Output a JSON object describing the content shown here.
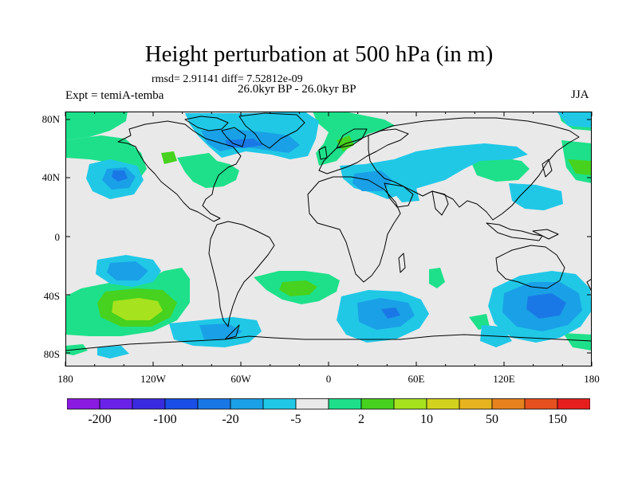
{
  "title": "Height perturbation at 500 hPa (in m)",
  "stats": "rmsd= 2.91141 diff= 7.52812e-09",
  "period": "26.0kyr BP - 26.0kyr BP",
  "experiment": "Expt = temiA-temba",
  "season": "JJA",
  "lat_labels": [
    "80N",
    "40N",
    "0",
    "40S",
    "80S"
  ],
  "lon_labels": [
    "180",
    "120W",
    "60W",
    "0",
    "60E",
    "120E",
    "180"
  ],
  "colorbar": {
    "labels": [
      "-200",
      "-100",
      "-20",
      "-5",
      "2",
      "10",
      "50",
      "150"
    ],
    "colors": [
      "#8a1be0",
      "#6a22e8",
      "#3a2be0",
      "#1a4ee6",
      "#1a78e6",
      "#1aa0e6",
      "#20c8e6",
      "#e9e9e9",
      "#1ee08a",
      "#46d21e",
      "#a6e21e",
      "#d2d21e",
      "#e6b41e",
      "#e6821e",
      "#e6501e",
      "#e61e1e"
    ]
  },
  "map_colors": {
    "background": "#e9e9e9",
    "green": "#1ee08a",
    "light_green": "#46d21e",
    "yellow_green": "#a6e21e",
    "cyan": "#20c8e6",
    "light_blue": "#1aa0e6",
    "blue": "#1a78e6"
  }
}
